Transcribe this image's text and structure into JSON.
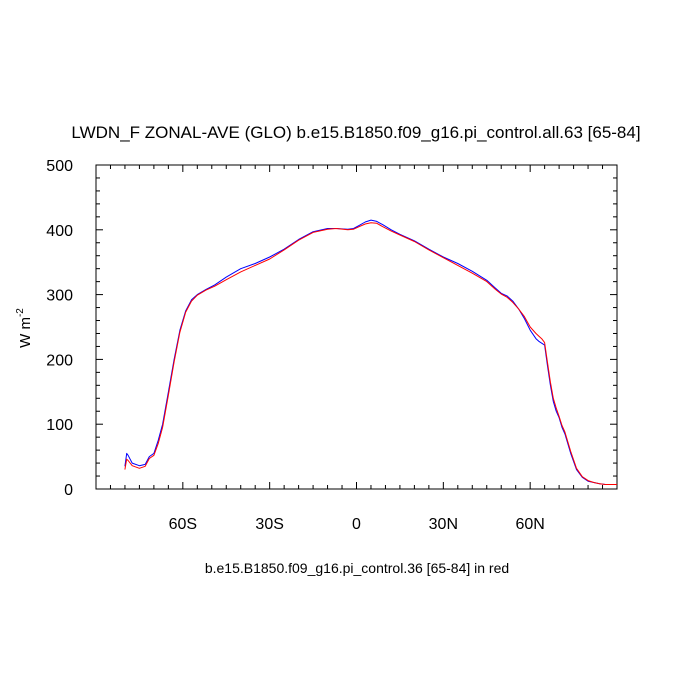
{
  "chart_data": {
    "type": "line",
    "title": "LWDN_F ZONAL-AVE (GLO) b.e15.B1850.f09_g16.pi_control.all.63 [65-84]",
    "xlabel": "b.e15.B1850.f09_g16.pi_control.36 [65-84] in red",
    "ylabel": "W m",
    "ylabel_superscript": "-2",
    "xlim": [
      -90,
      90
    ],
    "ylim": [
      0,
      500
    ],
    "x_ticks": [
      {
        "value": -60,
        "label": "60S"
      },
      {
        "value": -30,
        "label": "30S"
      },
      {
        "value": 0,
        "label": "0"
      },
      {
        "value": 30,
        "label": "30N"
      },
      {
        "value": 60,
        "label": "60N"
      }
    ],
    "y_ticks": [
      {
        "value": 0,
        "label": "0"
      },
      {
        "value": 100,
        "label": "100"
      },
      {
        "value": 200,
        "label": "200"
      },
      {
        "value": 300,
        "label": "300"
      },
      {
        "value": 400,
        "label": "400"
      },
      {
        "value": 500,
        "label": "500"
      }
    ],
    "grid": false,
    "series": [
      {
        "color": "#0000ff",
        "x": [
          -80,
          -79.4,
          -78.9,
          -77.5,
          -75,
          -73,
          -71.6,
          -70,
          -68.5,
          -67,
          -65,
          -63,
          -61,
          -59,
          -57,
          -55,
          -52,
          -49,
          -45,
          -40,
          -35,
          -30,
          -25,
          -20,
          -15,
          -10,
          -7,
          -3,
          -1,
          1,
          3,
          5,
          7,
          9,
          12,
          15,
          20,
          25,
          30,
          35,
          40,
          45,
          48,
          50,
          52,
          54,
          56,
          58,
          60,
          62,
          63,
          64,
          65,
          66,
          67,
          68,
          69,
          70,
          71,
          72,
          74,
          76,
          78,
          80,
          82,
          84,
          86,
          90
        ],
        "values": [
          35,
          55,
          52,
          40,
          36,
          38,
          50,
          55,
          75,
          100,
          150,
          200,
          245,
          275,
          292,
          300,
          308,
          315,
          327,
          340,
          348,
          358,
          370,
          385,
          397,
          402,
          402,
          401,
          402,
          407,
          412,
          415,
          413,
          408,
          400,
          393,
          383,
          370,
          358,
          348,
          336,
          322,
          310,
          302,
          298,
          290,
          278,
          263,
          245,
          232,
          228,
          225,
          222,
          190,
          160,
          135,
          120,
          110,
          95,
          85,
          55,
          30,
          18,
          12,
          10,
          8,
          7,
          7
        ]
      },
      {
        "color": "#ff0000",
        "x": [
          -80,
          -79.4,
          -78.9,
          -77.5,
          -75,
          -73,
          -71.6,
          -70,
          -68.5,
          -67,
          -65,
          -63,
          -61,
          -59,
          -57,
          -55,
          -52,
          -49,
          -45,
          -40,
          -35,
          -30,
          -25,
          -20,
          -15,
          -10,
          -7,
          -3,
          -1,
          1,
          3,
          5,
          7,
          9,
          12,
          15,
          20,
          25,
          30,
          35,
          40,
          45,
          48,
          50,
          52,
          54,
          56,
          58,
          60,
          62,
          63,
          64,
          65,
          66,
          67,
          68,
          69,
          70,
          71,
          72,
          74,
          76,
          78,
          80,
          82,
          84,
          86,
          90
        ],
        "values": [
          30,
          46,
          44,
          36,
          32,
          35,
          47,
          52,
          70,
          95,
          145,
          196,
          242,
          273,
          290,
          299,
          307,
          313,
          323,
          335,
          345,
          355,
          369,
          384,
          396,
          401,
          402,
          400,
          401,
          405,
          409,
          411,
          410,
          405,
          398,
          392,
          382,
          369,
          357,
          345,
          333,
          320,
          308,
          301,
          296,
          288,
          278,
          266,
          250,
          240,
          236,
          232,
          226,
          195,
          165,
          140,
          125,
          112,
          98,
          88,
          58,
          32,
          19,
          13,
          10,
          8,
          7,
          7
        ]
      }
    ]
  }
}
